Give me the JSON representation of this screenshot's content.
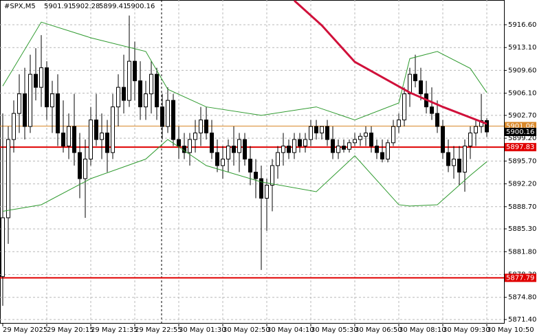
{
  "chart_data": {
    "type": "candlestick",
    "title": "#SPX,M5",
    "categories": [
      "29 May 2025",
      null,
      null,
      null,
      null,
      null,
      null,
      null,
      "29 May 20:15",
      null,
      null,
      null,
      null,
      null,
      null,
      null,
      "29 May 21:35",
      null,
      null,
      null,
      null,
      null,
      null,
      null,
      "29 May 22:55",
      null,
      null,
      null,
      null,
      null,
      null,
      null,
      "30 May 01:30",
      null,
      null,
      null,
      null,
      null,
      null,
      null,
      "30 May 02:50",
      null,
      null,
      null,
      null,
      null,
      null,
      null,
      "30 May 04:10",
      null,
      null,
      null,
      null,
      null,
      null,
      null,
      "30 May 05:30",
      null,
      null,
      null,
      null,
      null,
      null,
      null,
      "30 May 06:50",
      null,
      null,
      null,
      null,
      null,
      null,
      null,
      "30 May 08:10",
      null,
      null,
      null,
      null,
      null,
      null,
      null,
      "30 May 09:30",
      null,
      null,
      null,
      null,
      null,
      null,
      null,
      "30 May 10:50"
    ],
    "open": [
      5878,
      5887,
      5899,
      5903,
      5906,
      5901,
      5909,
      5907,
      5910,
      5904,
      5906,
      5900,
      5898,
      5901,
      5897,
      5893,
      5896,
      5902,
      5899,
      5900,
      5897,
      5904,
      5907,
      5905,
      5911,
      5908,
      5904,
      5906,
      5909,
      5904,
      5901,
      5905,
      5899,
      5898,
      5897,
      5899,
      5900,
      5902,
      5900,
      5897,
      5895,
      5896,
      5898,
      5897,
      5899,
      5896,
      5894,
      5893,
      5890,
      5892,
      5895,
      5897,
      5898,
      5897,
      5899,
      5898,
      5899,
      5901,
      5900,
      5901,
      5899,
      5897,
      5898,
      5897.5,
      5898.5,
      5899,
      5899.5,
      5900,
      5898,
      5897,
      5896,
      5898.5,
      5901,
      5902,
      5906,
      5909,
      5908,
      5906,
      5904,
      5903,
      5901,
      5897,
      5895,
      5896,
      5894,
      5898,
      5900,
      5901,
      5901.91
    ],
    "high": [
      5903,
      5901,
      5905,
      5909,
      5910,
      5912,
      5913,
      5915,
      5911,
      5908,
      5909,
      5905,
      5903,
      5906,
      5900,
      5899,
      5904,
      5906,
      5903,
      5902,
      5906,
      5909,
      5912,
      5918,
      5914,
      5911,
      5908,
      5911,
      5910,
      5906,
      5907,
      5906,
      5901,
      5900,
      5900,
      5902,
      5904,
      5904,
      5902,
      5899,
      5898,
      5899,
      5901,
      5900,
      5900,
      5898,
      5896,
      5895,
      5893,
      5896,
      5898,
      5900,
      5899,
      5900,
      5900,
      5900,
      5902,
      5902,
      5901,
      5902,
      5901,
      5899,
      5899,
      5899,
      5900,
      5900,
      5901,
      5901,
      5899,
      5899,
      5899,
      5902,
      5903,
      5907,
      5910,
      5912,
      5910,
      5908,
      5907,
      5905,
      5902,
      5899,
      5898,
      5898,
      5899,
      5901,
      5902,
      5906,
      5902.28
    ],
    "low": [
      5873.5,
      5883,
      5897,
      5900,
      5899,
      5900,
      5905,
      5904,
      5902,
      5900,
      5898,
      5897,
      5896,
      5895,
      5890,
      5887,
      5895,
      5898,
      5896,
      5894,
      5896,
      5901,
      5903,
      5904,
      5905,
      5902,
      5902,
      5903,
      5902,
      5899,
      5900,
      5898,
      5896,
      5896,
      5895,
      5897,
      5898,
      5899,
      5896,
      5894,
      5893,
      5894,
      5895,
      5894,
      5895,
      5892,
      5890,
      5879,
      5885,
      5888,
      5893,
      5895,
      5896,
      5896,
      5897,
      5897,
      5898,
      5899,
      5899,
      5898,
      5896,
      5896,
      5897,
      5897,
      5898,
      5898,
      5898,
      5897,
      5896,
      5895.5,
      5895.5,
      5898,
      5900,
      5901,
      5904,
      5907,
      5905,
      5903,
      5902,
      5900,
      5896,
      5894,
      5893,
      5892,
      5891,
      5896,
      5898,
      5900,
      5899.41
    ],
    "close": [
      5887,
      5899,
      5903,
      5906,
      5901,
      5909,
      5907,
      5910,
      5904,
      5906,
      5900,
      5898,
      5901,
      5897,
      5893,
      5896,
      5902,
      5899,
      5900,
      5897,
      5904,
      5907,
      5905,
      5911,
      5908,
      5904,
      5906,
      5909,
      5904,
      5901,
      5905,
      5899,
      5898,
      5897,
      5899,
      5900,
      5902,
      5900,
      5897,
      5895,
      5896,
      5898,
      5897,
      5899,
      5896,
      5894,
      5893,
      5890,
      5892,
      5895,
      5897,
      5898,
      5897,
      5899,
      5898,
      5899,
      5901,
      5900,
      5901,
      5899,
      5897,
      5898,
      5897.5,
      5898.5,
      5899,
      5899.5,
      5900,
      5898,
      5897,
      5896,
      5898.5,
      5901,
      5902,
      5906,
      5909,
      5908,
      5906,
      5904,
      5903,
      5901,
      5897,
      5895,
      5896,
      5894,
      5898,
      5900,
      5901,
      5901.91,
      5900.16
    ],
    "up_color": "#ffffff",
    "down_color": "#000000",
    "ylim": [
      5870.77,
      5920.39
    ],
    "yticks": [
      {
        "value": 5871.4,
        "label": "5871.40"
      },
      {
        "value": 5874.8,
        "label": "5874.80"
      },
      {
        "value": 5878.3,
        "label": "5878.30"
      },
      {
        "value": 5881.8,
        "label": "5881.80"
      },
      {
        "value": 5885.3,
        "label": "5885.30"
      },
      {
        "value": 5888.7,
        "label": "5888.70"
      },
      {
        "value": 5892.2,
        "label": "5892.20"
      },
      {
        "value": 5895.7,
        "label": "5895.70"
      },
      {
        "value": 5899.2,
        "label": "5899.20"
      },
      {
        "value": 5902.7,
        "label": "5902.70"
      },
      {
        "value": 5906.1,
        "label": "5906.10"
      },
      {
        "value": 5909.6,
        "label": "5909.60"
      },
      {
        "value": 5913.1,
        "label": "5913.10"
      },
      {
        "value": 5916.6,
        "label": "5916.60"
      }
    ],
    "grid": true,
    "overlays": [
      {
        "type": "line",
        "color": "#2e9a2e",
        "x": [
          0,
          7,
          16,
          26,
          30,
          37,
          47,
          57,
          64,
          72,
          74,
          79,
          85,
          88
        ],
        "values": [
          5907.2,
          5917,
          5914.6,
          5912.5,
          5906.7,
          5904,
          5902.7,
          5904,
          5902,
          5904.6,
          5911.4,
          5912.5,
          5909.9,
          5906.2
        ]
      },
      {
        "type": "line",
        "color": "#2e9a2e",
        "x": [
          0,
          7,
          16,
          26,
          30,
          37,
          47,
          57,
          64,
          72,
          74,
          79,
          85,
          88
        ],
        "values": [
          5888,
          5889,
          5893,
          5896,
          5899,
          5895,
          5892.5,
          5891,
          5896.5,
          5889,
          5888.8,
          5889,
          5893.5,
          5895.6
        ]
      },
      {
        "type": "line",
        "color": "#d0103a",
        "x": [
          53,
          58,
          64,
          74,
          80,
          88
        ],
        "values": [
          5920.3,
          5916.5,
          5910.9,
          5906.2,
          5904,
          5901.4
        ]
      }
    ],
    "levels": [
      {
        "value": 5901.06,
        "color": "#d9882a"
      },
      {
        "value": 5897.83,
        "color": "#e00000"
      },
      {
        "value": 5877.79,
        "color": "#e00000"
      }
    ]
  }
}
